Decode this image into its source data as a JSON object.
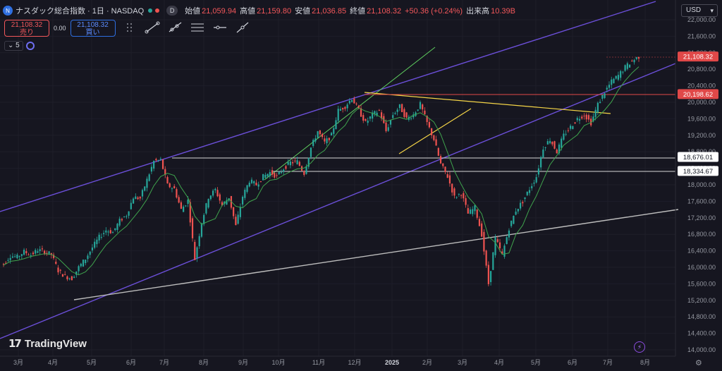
{
  "header": {
    "symbol": "ナスダック総合指数 · 1日 · NASDAQ",
    "d_badge": "D",
    "ohlc": {
      "open_label": "始値",
      "open": "21,059.94",
      "high_label": "高値",
      "high": "21,159.80",
      "low_label": "安値",
      "low": "21,036.85",
      "close_label": "終値",
      "close": "21,108.32",
      "change": "+50.36 (+0.24%)",
      "volume_label": "出来高",
      "volume": "10.39B"
    }
  },
  "trade": {
    "sell_price": "21,108.32",
    "sell_label": "売り",
    "spread": "0.00",
    "buy_price": "21,108.32",
    "buy_label": "買い"
  },
  "indicators": {
    "count": "5"
  },
  "currency": "USD",
  "brand": "TradingView",
  "colors": {
    "bg": "#161620",
    "up": "#26a69a",
    "down": "#ef5350",
    "channel": "#6b4fd8",
    "ma": "#3fa34d",
    "trend_yellow": "#f5d547",
    "trend_green": "#5fcf5f",
    "support": "#c9c9c9",
    "red_level": "#e04848"
  },
  "chart_data": {
    "type": "candlestick",
    "y_ticks": [
      "22,000.00",
      "21,600.00",
      "21,200.00",
      "20,800.00",
      "20,400.00",
      "20,000.00",
      "19,600.00",
      "19,200.00",
      "18,800.00",
      "18,400.00",
      "18,000.00",
      "17,600.00",
      "17,200.00",
      "16,800.00",
      "16,400.00",
      "16,000.00",
      "15,600.00",
      "15,200.00",
      "14,800.00",
      "14,400.00",
      "14,000.00"
    ],
    "y_tick_values": [
      22000,
      21600,
      21200,
      20800,
      20400,
      20000,
      19600,
      19200,
      18800,
      18400,
      18000,
      17600,
      17200,
      16800,
      16400,
      16000,
      15600,
      15200,
      14800,
      14400,
      14000
    ],
    "x_ticks": [
      "3月",
      "4月",
      "5月",
      "6月",
      "7月",
      "8月",
      "9月",
      "10月",
      "11月",
      "12月",
      "2025",
      "2月",
      "3月",
      "4月",
      "5月",
      "6月",
      "7月",
      "8月"
    ],
    "price_labels": [
      {
        "value": 21108.32,
        "text": "21,108.32",
        "style": "red"
      },
      {
        "value": 20198.62,
        "text": "20,198.62",
        "style": "red"
      },
      {
        "value": 18676.01,
        "text": "18,676.01",
        "style": "white"
      },
      {
        "value": 18334.67,
        "text": "18,334.67",
        "style": "white"
      }
    ],
    "ylim": [
      13900,
      22180
    ],
    "series_close": [
      {
        "t": 0,
        "v": 16090
      },
      {
        "t": 1,
        "v": 16280
      },
      {
        "t": 2,
        "v": 16250
      },
      {
        "t": 3,
        "v": 16380
      },
      {
        "t": 4,
        "v": 16300
      },
      {
        "t": 5,
        "v": 16420
      },
      {
        "t": 6,
        "v": 16380
      },
      {
        "t": 7,
        "v": 16310
      },
      {
        "t": 8,
        "v": 15920
      },
      {
        "t": 9,
        "v": 15780
      },
      {
        "t": 10,
        "v": 15730
      },
      {
        "t": 11,
        "v": 16000
      },
      {
        "t": 12,
        "v": 16210
      },
      {
        "t": 13,
        "v": 16480
      },
      {
        "t": 14,
        "v": 16730
      },
      {
        "t": 15,
        "v": 16900
      },
      {
        "t": 16,
        "v": 16850
      },
      {
        "t": 17,
        "v": 17130
      },
      {
        "t": 18,
        "v": 17270
      },
      {
        "t": 19,
        "v": 17700
      },
      {
        "t": 20,
        "v": 17670
      },
      {
        "t": 21,
        "v": 18120
      },
      {
        "t": 22,
        "v": 18570
      },
      {
        "t": 23,
        "v": 18600
      },
      {
        "t": 24,
        "v": 17990
      },
      {
        "t": 25,
        "v": 17900
      },
      {
        "t": 26,
        "v": 17400
      },
      {
        "t": 27,
        "v": 17620
      },
      {
        "t": 28,
        "v": 16200
      },
      {
        "t": 29,
        "v": 17100
      },
      {
        "t": 30,
        "v": 17700
      },
      {
        "t": 31,
        "v": 17880
      },
      {
        "t": 32,
        "v": 17500
      },
      {
        "t": 33,
        "v": 17700
      },
      {
        "t": 34,
        "v": 17000
      },
      {
        "t": 35,
        "v": 17720
      },
      {
        "t": 36,
        "v": 18100
      },
      {
        "t": 37,
        "v": 18000
      },
      {
        "t": 38,
        "v": 18200
      },
      {
        "t": 39,
        "v": 18300
      },
      {
        "t": 40,
        "v": 18200
      },
      {
        "t": 41,
        "v": 18400
      },
      {
        "t": 42,
        "v": 18540
      },
      {
        "t": 43,
        "v": 18560
      },
      {
        "t": 44,
        "v": 18280
      },
      {
        "t": 45,
        "v": 18900
      },
      {
        "t": 46,
        "v": 19300
      },
      {
        "t": 47,
        "v": 19020
      },
      {
        "t": 48,
        "v": 19200
      },
      {
        "t": 49,
        "v": 19800
      },
      {
        "t": 50,
        "v": 19900
      },
      {
        "t": 51,
        "v": 20100
      },
      {
        "t": 52,
        "v": 19800
      },
      {
        "t": 53,
        "v": 19500
      },
      {
        "t": 54,
        "v": 19700
      },
      {
        "t": 55,
        "v": 19800
      },
      {
        "t": 56,
        "v": 19300
      },
      {
        "t": 57,
        "v": 19700
      },
      {
        "t": 58,
        "v": 19900
      },
      {
        "t": 59,
        "v": 19600
      },
      {
        "t": 60,
        "v": 19700
      },
      {
        "t": 61,
        "v": 19950
      },
      {
        "t": 62,
        "v": 19500
      },
      {
        "t": 63,
        "v": 19100
      },
      {
        "t": 64,
        "v": 18500
      },
      {
        "t": 65,
        "v": 18200
      },
      {
        "t": 66,
        "v": 17700
      },
      {
        "t": 67,
        "v": 17800
      },
      {
        "t": 68,
        "v": 17300
      },
      {
        "t": 69,
        "v": 17450
      },
      {
        "t": 70,
        "v": 16800
      },
      {
        "t": 71,
        "v": 15600
      },
      {
        "t": 72,
        "v": 16700
      },
      {
        "t": 73,
        "v": 16300
      },
      {
        "t": 74,
        "v": 16950
      },
      {
        "t": 75,
        "v": 17380
      },
      {
        "t": 76,
        "v": 17600
      },
      {
        "t": 77,
        "v": 17900
      },
      {
        "t": 78,
        "v": 18200
      },
      {
        "t": 79,
        "v": 18900
      },
      {
        "t": 80,
        "v": 19100
      },
      {
        "t": 81,
        "v": 18800
      },
      {
        "t": 82,
        "v": 19200
      },
      {
        "t": 83,
        "v": 19400
      },
      {
        "t": 84,
        "v": 19600
      },
      {
        "t": 85,
        "v": 19700
      },
      {
        "t": 86,
        "v": 19500
      },
      {
        "t": 87,
        "v": 19950
      },
      {
        "t": 88,
        "v": 20250
      },
      {
        "t": 89,
        "v": 20500
      },
      {
        "t": 90,
        "v": 20650
      },
      {
        "t": 91,
        "v": 20850
      },
      {
        "t": 92,
        "v": 21000
      },
      {
        "t": 93,
        "v": 21108
      }
    ]
  }
}
